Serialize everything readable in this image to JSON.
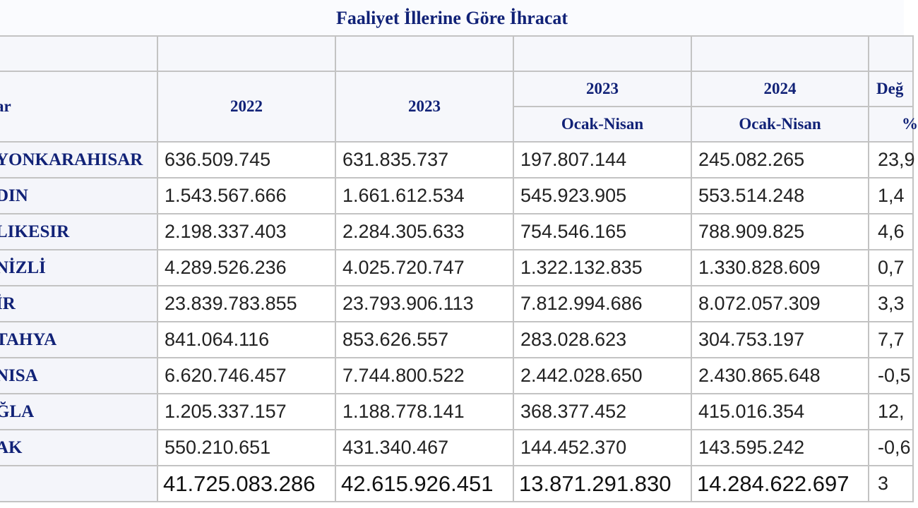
{
  "title": "Faaliyet İllerine Göre İhracat",
  "header": {
    "col_provinces_partial": "ar",
    "col_2022": "2022",
    "col_2023": "2023",
    "col_2023_period_year": "2023",
    "col_2023_period": "Ocak-Nisan",
    "col_2024_period_year": "2024",
    "col_2024_period": "Ocak-Nisan",
    "col_change_partial": "Değ",
    "col_change_unit_partial": "%"
  },
  "rows": [
    {
      "name": "YONKARAHISAR",
      "v2022": "636.509.745",
      "v2023": "631.835.737",
      "p2023": "197.807.144",
      "p2024": "245.082.265",
      "change": "23,9"
    },
    {
      "name": "DIN",
      "v2022": "1.543.567.666",
      "v2023": "1.661.612.534",
      "p2023": "545.923.905",
      "p2024": "553.514.248",
      "change": "1,4"
    },
    {
      "name": "LIKESIR",
      "v2022": "2.198.337.403",
      "v2023": "2.284.305.633",
      "p2023": "754.546.165",
      "p2024": "788.909.825",
      "change": "4,6"
    },
    {
      "name": "NİZLİ",
      "v2022": "4.289.526.236",
      "v2023": "4.025.720.747",
      "p2023": "1.322.132.835",
      "p2024": "1.330.828.609",
      "change": "0,7"
    },
    {
      "name": "İR",
      "v2022": "23.839.783.855",
      "v2023": "23.793.906.113",
      "p2023": "7.812.994.686",
      "p2024": "8.072.057.309",
      "change": "3,3"
    },
    {
      "name": "TAHYA",
      "v2022": "841.064.116",
      "v2023": "853.626.557",
      "p2023": "283.028.623",
      "p2024": "304.753.197",
      "change": "7,7"
    },
    {
      "name": "NISA",
      "v2022": "6.620.746.457",
      "v2023": "7.744.800.522",
      "p2023": "2.442.028.650",
      "p2024": "2.430.865.648",
      "change": "-0,5"
    },
    {
      "name": "ĞLA",
      "v2022": "1.205.337.157",
      "v2023": "1.188.778.141",
      "p2023": "368.377.452",
      "p2024": "415.016.354",
      "change": "12,"
    },
    {
      "name": "AK",
      "v2022": "550.210.651",
      "v2023": "431.340.467",
      "p2023": "144.452.370",
      "p2024": "143.595.242",
      "change": "-0,6"
    }
  ],
  "total": {
    "name": "",
    "v2022": "41.725.083.286",
    "v2023": "42.615.926.451",
    "p2023": "13.871.291.830",
    "p2024": "14.284.622.697",
    "change": "3"
  },
  "colors": {
    "header_text": "#112277",
    "grid_line": "#c3c3c3",
    "header_bg": "#f6f7fb"
  }
}
